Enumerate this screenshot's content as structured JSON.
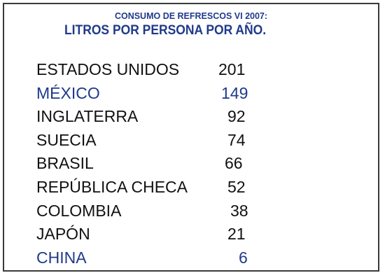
{
  "title": {
    "line1": "CONSUMO DE REFRESCOS VI 2007:",
    "line2": "LITROS POR PERSONA POR AÑO."
  },
  "rows": [
    {
      "country": "ESTADOS UNIDOS",
      "value": "201",
      "highlight": false
    },
    {
      "country": "MÉXICO",
      "value": "149",
      "highlight": true
    },
    {
      "country": "INGLATERRA",
      "value": "92",
      "highlight": false
    },
    {
      "country": "SUECIA",
      "value": "74",
      "highlight": false
    },
    {
      "country": "BRASIL",
      "value": "66",
      "highlight": false
    },
    {
      "country": "REPÚBLICA CHECA",
      "value": "52",
      "highlight": false
    },
    {
      "country": "COLOMBIA",
      "value": "38",
      "highlight": false
    },
    {
      "country": "JAPÓN",
      "value": "21",
      "highlight": false
    },
    {
      "country": "CHINA",
      "value": "6",
      "highlight": true
    }
  ],
  "colors": {
    "highlight": "#1f3a8a",
    "text": "#111111",
    "border": "#3a3a3a"
  }
}
